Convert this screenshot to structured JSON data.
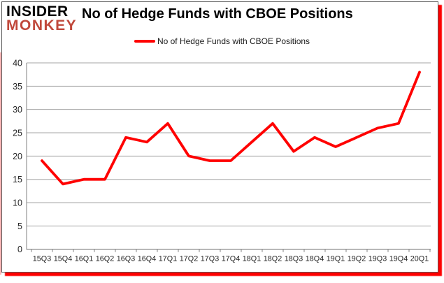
{
  "logo": {
    "line1": "INSIDER",
    "line2": "MONKEY"
  },
  "header": {
    "title": "No of Hedge Funds with CBOE Positions"
  },
  "legend": {
    "label": "No of Hedge Funds with CBOE Positions"
  },
  "colors": {
    "line": "#ff0000",
    "logo_accent": "#c0483b",
    "logo_dark": "#000000",
    "grid": "#a6a6a6",
    "axis": "#808080",
    "frame": "#595959",
    "shadow": "#fe0000",
    "tick_text": "#262626"
  },
  "chart_data": {
    "type": "line",
    "title": "No of Hedge Funds with CBOE Positions",
    "categories": [
      "15Q3",
      "15Q4",
      "16Q1",
      "16Q2",
      "16Q3",
      "16Q4",
      "17Q1",
      "17Q2",
      "17Q3",
      "17Q4",
      "18Q1",
      "18Q2",
      "18Q3",
      "18Q4",
      "19Q1",
      "19Q2",
      "19Q3",
      "19Q4",
      "20Q1"
    ],
    "series": [
      {
        "name": "No of Hedge Funds with CBOE Positions",
        "values": [
          19,
          14,
          15,
          15,
          24,
          23,
          27,
          20,
          19,
          19,
          23,
          27,
          21,
          24,
          22,
          24,
          26,
          27,
          38
        ]
      }
    ],
    "xlabel": "",
    "ylabel": "",
    "ylim": [
      0,
      40
    ],
    "ytick_interval": 5,
    "grid": true,
    "legend_position": "top-center"
  }
}
